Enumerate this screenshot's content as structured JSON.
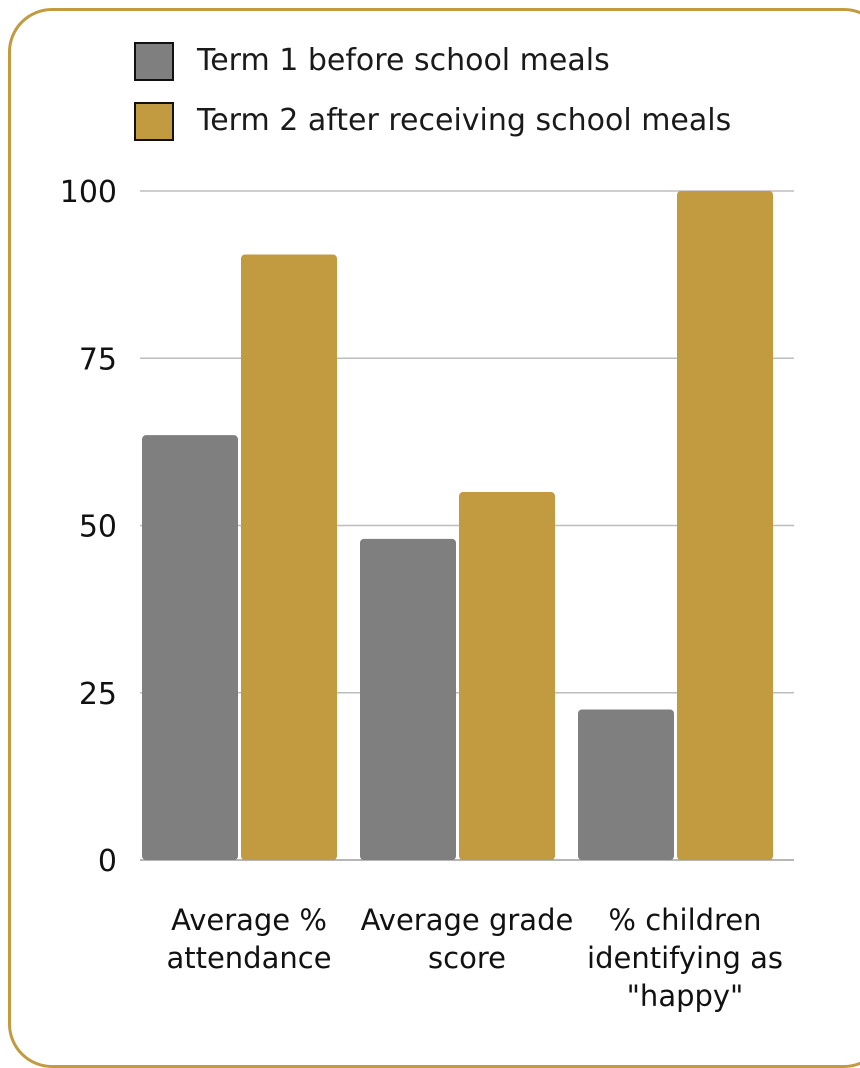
{
  "chart_data": {
    "type": "bar",
    "title": "",
    "xlabel": "",
    "ylabel": "",
    "ylim": [
      0,
      100
    ],
    "y_ticks": [
      0,
      25,
      50,
      75,
      100
    ],
    "grid": true,
    "legend_position": "top",
    "categories": [
      [
        "Average %",
        "attendance"
      ],
      [
        "Average grade",
        "score"
      ],
      [
        "% children",
        "identifying as",
        "\"happy\""
      ]
    ],
    "series": [
      {
        "name": "Term 1 before school meals",
        "color": "#7f7f7f",
        "values": [
          63.5,
          48,
          22.5
        ]
      },
      {
        "name": "Term 2 after receiving school meals",
        "color": "#c29a3f",
        "values": [
          90.5,
          55,
          100
        ]
      }
    ]
  },
  "colors": {
    "frame": "#c29a3f",
    "grid": "#bdbdbd"
  }
}
